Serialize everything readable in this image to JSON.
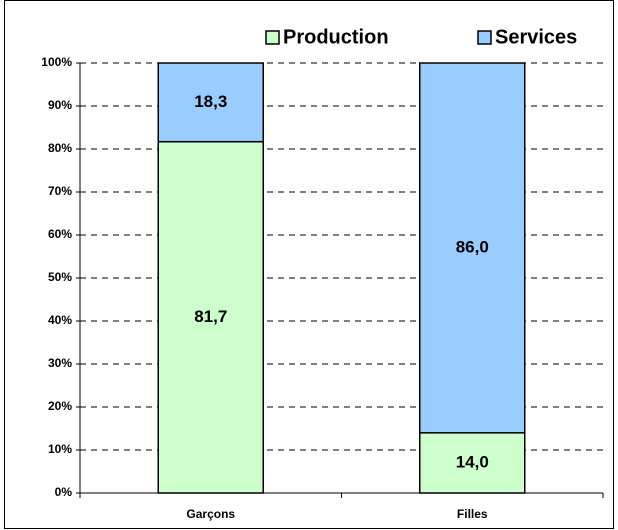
{
  "chart_data": {
    "type": "stacked_bar",
    "categories": [
      "Garçons",
      "Filles"
    ],
    "series": [
      {
        "name": "Production",
        "color": "#ccffcc",
        "values": [
          81.7,
          14.0
        ],
        "value_labels": [
          "81,7",
          "14,0"
        ]
      },
      {
        "name": "Services",
        "color": "#99ccff",
        "values": [
          18.3,
          86.0
        ],
        "value_labels": [
          "18,3",
          "86,0"
        ]
      }
    ],
    "ylim": [
      0,
      100
    ],
    "yticks": [
      {
        "value": 0,
        "label": "0%"
      },
      {
        "value": 10,
        "label": "10%"
      },
      {
        "value": 20,
        "label": "20%"
      },
      {
        "value": 30,
        "label": "30%"
      },
      {
        "value": 40,
        "label": "40%"
      },
      {
        "value": 50,
        "label": "50%"
      },
      {
        "value": 60,
        "label": "60%"
      },
      {
        "value": 70,
        "label": "70%"
      },
      {
        "value": 80,
        "label": "80%"
      },
      {
        "value": 90,
        "label": "90%"
      },
      {
        "value": 100,
        "label": "100%"
      }
    ],
    "grid": true,
    "legend": "top"
  }
}
